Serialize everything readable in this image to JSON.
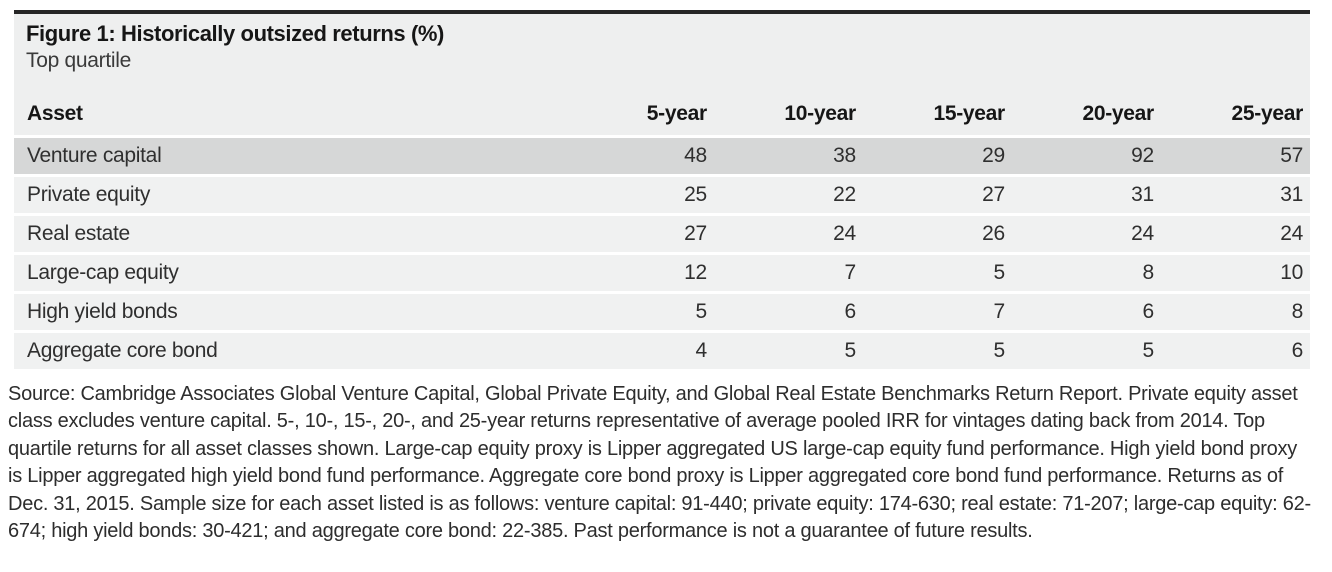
{
  "figure": {
    "title": "Figure 1: Historically outsized returns (%)",
    "subtitle": "Top quartile",
    "table": {
      "columns": [
        "Asset",
        "5-year",
        "10-year",
        "15-year",
        "20-year",
        "25-year"
      ],
      "rows": [
        {
          "asset": "Venture capital",
          "values": [
            "48",
            "38",
            "29",
            "92",
            "57"
          ]
        },
        {
          "asset": "Private equity",
          "values": [
            "25",
            "22",
            "27",
            "31",
            "31"
          ]
        },
        {
          "asset": "Real estate",
          "values": [
            "27",
            "24",
            "26",
            "24",
            "24"
          ]
        },
        {
          "asset": "Large-cap equity",
          "values": [
            "12",
            "7",
            "5",
            "8",
            "10"
          ]
        },
        {
          "asset": "High yield bonds",
          "values": [
            "5",
            "6",
            "7",
            "6",
            "8"
          ]
        },
        {
          "asset": "Aggregate core bond",
          "values": [
            "4",
            "5",
            "5",
            "5",
            "6"
          ]
        }
      ]
    },
    "source": "Source: Cambridge Associates Global Venture Capital, Global Private Equity, and Global Real Estate Benchmarks Return Report. Private equity asset class excludes venture capital. 5-, 10-, 15-, 20-, and 25-year returns representative of average pooled IRR for vintages dating back from 2014. Top quartile returns for all asset classes shown. Large-cap equity proxy is Lipper aggregated US large-cap equity fund performance. High yield bond proxy is Lipper aggregated high yield bond fund performance. Aggregate core bond proxy is Lipper aggregated core bond fund performance. Returns as of Dec. 31, 2015. Sample size for each asset listed is as follows: venture capital: 91-440; private equity: 174-630; real estate: 71-207; large-cap equity: 62-674; high yield bonds: 30-421; and aggregate core bond: 22-385. Past performance is not a guarantee of future results."
  },
  "colors": {
    "top_bar": "#262626",
    "panel_background": "#eeefef",
    "highlight_row": "#d6d7d7",
    "normal_row": "#f0f1f1",
    "separator": "#ffffff",
    "text": "#2f2f2f"
  },
  "chart_data": {
    "type": "table",
    "title": "Figure 1: Historically outsized returns (%)",
    "subtitle": "Top quartile",
    "columns": [
      "Asset",
      "5-year",
      "10-year",
      "15-year",
      "20-year",
      "25-year"
    ],
    "rows": [
      [
        "Venture capital",
        48,
        38,
        29,
        92,
        57
      ],
      [
        "Private equity",
        25,
        22,
        27,
        31,
        31
      ],
      [
        "Real estate",
        27,
        24,
        26,
        24,
        24
      ],
      [
        "Large-cap equity",
        12,
        7,
        5,
        8,
        10
      ],
      [
        "High yield bonds",
        5,
        6,
        7,
        6,
        8
      ],
      [
        "Aggregate core bond",
        4,
        5,
        5,
        5,
        6
      ]
    ]
  }
}
